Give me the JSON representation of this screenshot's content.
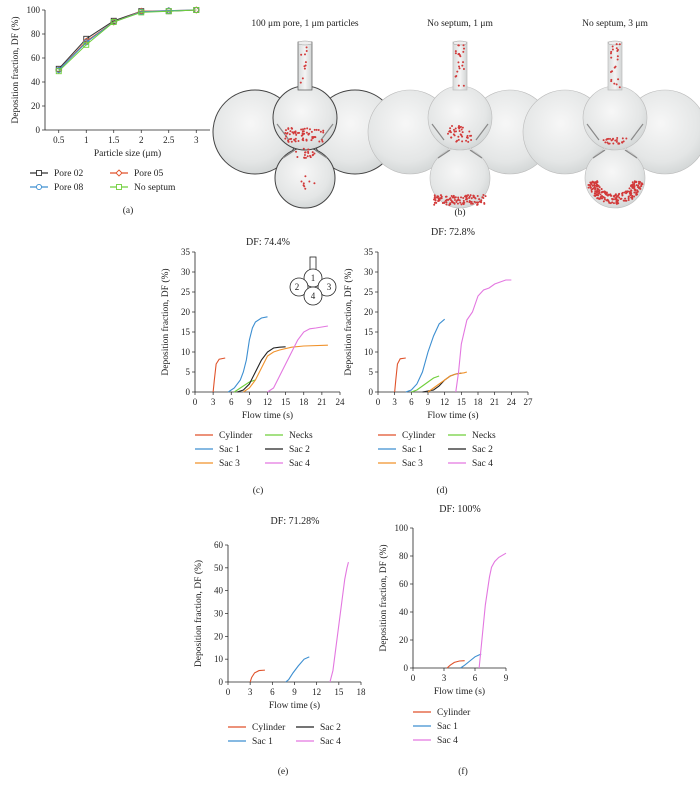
{
  "chart_data": [
    {
      "id": "a",
      "panel_label": "(a)",
      "type": "line",
      "title": "",
      "xlabel": "Particle size (μm)",
      "ylabel": "Deposition fraction, DF (%)",
      "x": [
        0.5,
        1,
        1.5,
        2,
        2.5,
        3
      ],
      "xticks": [
        "0.5",
        "1",
        "1.5",
        "2",
        "2.5",
        "3"
      ],
      "xlim": [
        0.25,
        3.25
      ],
      "ylim": [
        0,
        100
      ],
      "yticks": [
        0,
        20,
        40,
        60,
        80,
        100
      ],
      "grid": false,
      "legend": "below",
      "series": [
        {
          "name": "Pore 02",
          "color": "#333333",
          "marker": "square",
          "values": [
            51,
            76,
            91,
            99,
            99,
            100
          ]
        },
        {
          "name": "Pore 05",
          "color": "#e0522a",
          "marker": "diamond",
          "values": [
            50,
            74,
            90,
            99,
            99.5,
            100
          ]
        },
        {
          "name": "Pore 08",
          "color": "#3d8fd1",
          "marker": "circle",
          "values": [
            50,
            73,
            90,
            98.5,
            99.5,
            100
          ]
        },
        {
          "name": "No septum",
          "color": "#6fcf3a",
          "marker": "square",
          "values": [
            49,
            71,
            90,
            98,
            99,
            100
          ]
        }
      ]
    },
    {
      "id": "c",
      "panel_label": "(c)",
      "type": "line",
      "title": "DF: 74.4%",
      "xlabel": "Flow time (s)",
      "ylabel": "Deposition fraction, DF (%)",
      "xlim": [
        0,
        24
      ],
      "xticks": [
        0,
        3,
        6,
        9,
        12,
        15,
        18,
        21,
        24
      ],
      "ylim": [
        0,
        35
      ],
      "yticks": [
        0,
        5,
        10,
        15,
        20,
        25,
        30,
        35
      ],
      "grid": false,
      "legend": "below",
      "inset_labels": [
        "1",
        "2",
        "3",
        "4"
      ],
      "series": [
        {
          "name": "Cylinder",
          "color": "#e0522a",
          "points": [
            [
              3.0,
              0
            ],
            [
              3.2,
              3
            ],
            [
              3.5,
              7
            ],
            [
              4,
              8.2
            ],
            [
              5,
              8.5
            ]
          ]
        },
        {
          "name": "Necks",
          "color": "#6fcf3a",
          "points": [
            [
              6.5,
              0
            ],
            [
              7,
              0.5
            ],
            [
              8,
              1.5
            ],
            [
              9,
              2.5
            ],
            [
              10,
              3
            ]
          ]
        },
        {
          "name": "Sac 1",
          "color": "#3d8fd1",
          "points": [
            [
              5.5,
              0
            ],
            [
              6.5,
              1
            ],
            [
              7.5,
              3
            ],
            [
              8,
              5
            ],
            [
              8.5,
              8
            ],
            [
              9,
              13
            ],
            [
              9.5,
              16
            ],
            [
              10,
              17.5
            ],
            [
              11,
              18.5
            ],
            [
              12,
              18.8
            ]
          ]
        },
        {
          "name": "Sac 2",
          "color": "#222222",
          "points": [
            [
              7,
              0
            ],
            [
              8,
              0.5
            ],
            [
              9,
              2
            ],
            [
              10,
              5
            ],
            [
              11,
              8
            ],
            [
              12,
              10
            ],
            [
              13,
              11
            ],
            [
              14,
              11.2
            ],
            [
              15,
              11.3
            ]
          ]
        },
        {
          "name": "Sac 3",
          "color": "#f0922b",
          "points": [
            [
              8,
              0
            ],
            [
              9,
              1
            ],
            [
              10,
              3
            ],
            [
              11,
              6
            ],
            [
              12,
              9
            ],
            [
              13,
              10
            ],
            [
              14,
              10.5
            ],
            [
              16,
              11.2
            ],
            [
              18,
              11.5
            ],
            [
              22,
              11.7
            ]
          ]
        },
        {
          "name": "Sac 4",
          "color": "#e377e0",
          "points": [
            [
              12,
              0
            ],
            [
              13,
              1
            ],
            [
              14,
              4
            ],
            [
              15,
              7
            ],
            [
              16,
              10
            ],
            [
              17,
              13
            ],
            [
              18,
              15
            ],
            [
              19,
              15.8
            ],
            [
              20,
              16
            ],
            [
              22,
              16.5
            ]
          ]
        }
      ]
    },
    {
      "id": "d",
      "panel_label": "(d)",
      "type": "line",
      "title": "DF: 72.8%",
      "xlabel": "Flow time (s)",
      "ylabel": "Deposition fraction, DF (%)",
      "xlim": [
        0,
        27
      ],
      "xticks": [
        0,
        3,
        6,
        9,
        12,
        15,
        18,
        21,
        24,
        27
      ],
      "ylim": [
        0,
        35
      ],
      "yticks": [
        0,
        5,
        10,
        15,
        20,
        25,
        30,
        35
      ],
      "grid": false,
      "legend": "below",
      "series": [
        {
          "name": "Cylinder",
          "color": "#e0522a",
          "points": [
            [
              3.0,
              0
            ],
            [
              3.2,
              3
            ],
            [
              3.5,
              7
            ],
            [
              4,
              8.3
            ],
            [
              5,
              8.5
            ]
          ]
        },
        {
          "name": "Necks",
          "color": "#6fcf3a",
          "points": [
            [
              6,
              0
            ],
            [
              7,
              0.5
            ],
            [
              8,
              1.5
            ],
            [
              9,
              2.5
            ],
            [
              10,
              3.5
            ],
            [
              11,
              4
            ]
          ]
        },
        {
          "name": "Sac 1",
          "color": "#3d8fd1",
          "points": [
            [
              5,
              0
            ],
            [
              6,
              0.5
            ],
            [
              7,
              2
            ],
            [
              8,
              5
            ],
            [
              9,
              10
            ],
            [
              10,
              14
            ],
            [
              11,
              17
            ],
            [
              12,
              18.2
            ]
          ]
        },
        {
          "name": "Sac 2",
          "color": "#222222",
          "points": [
            [
              8,
              0
            ],
            [
              10,
              0.5
            ],
            [
              11,
              1.5
            ],
            [
              12,
              3
            ],
            [
              13,
              4
            ],
            [
              14,
              4.5
            ],
            [
              15,
              4.7
            ]
          ]
        },
        {
          "name": "Sac 3",
          "color": "#f0922b",
          "points": [
            [
              9,
              0
            ],
            [
              10,
              1
            ],
            [
              11,
              2
            ],
            [
              12,
              3
            ],
            [
              13,
              4
            ],
            [
              14,
              4.5
            ],
            [
              15.5,
              4.8
            ],
            [
              16,
              5
            ]
          ]
        },
        {
          "name": "Sac 4",
          "color": "#e377e0",
          "points": [
            [
              14,
              0
            ],
            [
              14.5,
              5
            ],
            [
              15,
              12
            ],
            [
              16,
              18
            ],
            [
              17,
              20
            ],
            [
              18,
              24
            ],
            [
              19,
              25.5
            ],
            [
              20,
              26
            ],
            [
              21,
              27
            ],
            [
              22,
              27.5
            ],
            [
              23,
              28
            ],
            [
              24,
              28
            ]
          ]
        }
      ]
    },
    {
      "id": "e",
      "panel_label": "(e)",
      "type": "line",
      "title": "DF: 71.28%",
      "xlabel": "Flow time (s)",
      "ylabel": "Deposition fraction, DF (%)",
      "xlim": [
        0,
        18
      ],
      "xticks": [
        0,
        3,
        6,
        9,
        12,
        15,
        18
      ],
      "ylim": [
        0,
        60
      ],
      "yticks": [
        0,
        10,
        20,
        30,
        40,
        50,
        60
      ],
      "grid": false,
      "legend": "below",
      "series": [
        {
          "name": "Cylinder",
          "color": "#e0522a",
          "points": [
            [
              3.0,
              0
            ],
            [
              3.2,
              2
            ],
            [
              3.6,
              4
            ],
            [
              4.2,
              5
            ],
            [
              5,
              5.2
            ]
          ]
        },
        {
          "name": "Sac 2",
          "color": "#222222",
          "points": []
        },
        {
          "name": "Sac 1",
          "color": "#3d8fd1",
          "points": [
            [
              7.8,
              0
            ],
            [
              8.2,
              1
            ],
            [
              8.8,
              4
            ],
            [
              9.5,
              7
            ],
            [
              10.3,
              10
            ],
            [
              11,
              11
            ]
          ]
        },
        {
          "name": "Sac 4",
          "color": "#e377e0",
          "points": [
            [
              13.8,
              0
            ],
            [
              14.2,
              5
            ],
            [
              14.6,
              15
            ],
            [
              15,
              25
            ],
            [
              15.4,
              35
            ],
            [
              15.8,
              45
            ],
            [
              16.1,
              50
            ],
            [
              16.3,
              52.5
            ]
          ]
        }
      ]
    },
    {
      "id": "f",
      "panel_label": "(f)",
      "type": "line",
      "title": "DF: 100%",
      "xlabel": "Flow time (s)",
      "ylabel": "Deposition fraction, DF (%)",
      "xlim": [
        0,
        9
      ],
      "xticks": [
        0,
        3,
        6,
        9
      ],
      "ylim": [
        0,
        100
      ],
      "yticks": [
        0,
        20,
        40,
        60,
        80,
        100
      ],
      "grid": false,
      "legend": "below",
      "series": [
        {
          "name": "Cylinder",
          "color": "#e0522a",
          "points": [
            [
              3.3,
              0
            ],
            [
              3.6,
              2
            ],
            [
              4,
              4
            ],
            [
              4.5,
              5
            ],
            [
              5,
              5.2
            ]
          ]
        },
        {
          "name": "Sac 1",
          "color": "#3d8fd1",
          "points": [
            [
              4.6,
              0
            ],
            [
              5,
              2
            ],
            [
              5.5,
              5
            ],
            [
              6,
              8
            ],
            [
              6.3,
              9
            ],
            [
              6.6,
              10
            ]
          ]
        },
        {
          "name": "Sac 4",
          "color": "#e377e0",
          "points": [
            [
              6.4,
              0
            ],
            [
              6.6,
              15
            ],
            [
              6.8,
              30
            ],
            [
              7,
              45
            ],
            [
              7.2,
              55
            ],
            [
              7.4,
              65
            ],
            [
              7.6,
              72
            ],
            [
              7.9,
              76
            ],
            [
              8.3,
              79
            ],
            [
              9,
              82
            ]
          ]
        }
      ]
    }
  ],
  "panel_b": {
    "panel_label": "(b)",
    "captions": [
      "100 μm pore, 1 μm particles",
      "No septum, 1 μm",
      "No septum, 3 μm"
    ]
  }
}
